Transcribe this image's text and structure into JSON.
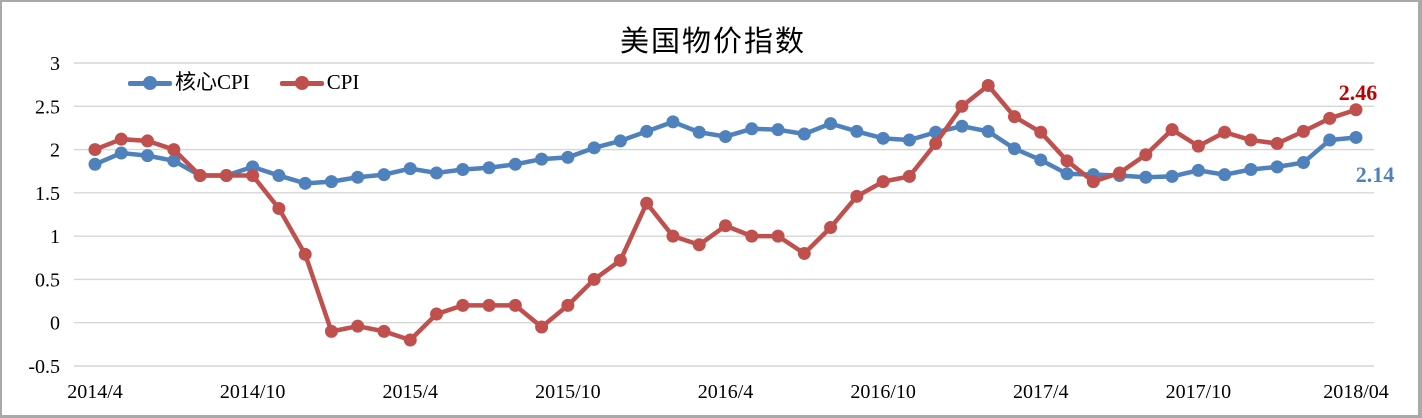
{
  "window": {
    "background": "#ffffff",
    "frame_color": "#a9a9a9"
  },
  "chart_data": {
    "type": "line",
    "title": "美国物价指数",
    "xlabel": "",
    "ylabel": "",
    "ylim": [
      -0.5,
      3
    ],
    "grid": "horizontal",
    "grid_color": "#d6d6d6",
    "legend_position": "top-left-inside",
    "y_tick_labels": [
      "3",
      "2.5",
      "2",
      "1.5",
      "1",
      "0.5",
      "0",
      "-0.5"
    ],
    "y_tick_values": [
      3,
      2.5,
      2,
      1.5,
      1,
      0.5,
      0,
      -0.5
    ],
    "x_tick_labels": [
      "2014/4",
      "2014/10",
      "2015/4",
      "2015/10",
      "2016/4",
      "2016/10",
      "2017/4",
      "2017/10",
      "2018/04"
    ],
    "x_tick_month_index": [
      0,
      6,
      12,
      18,
      24,
      30,
      36,
      42,
      48
    ],
    "x": [
      "2014/4",
      "2014/5",
      "2014/6",
      "2014/7",
      "2014/8",
      "2014/9",
      "2014/10",
      "2014/11",
      "2014/12",
      "2015/1",
      "2015/2",
      "2015/3",
      "2015/4",
      "2015/5",
      "2015/6",
      "2015/7",
      "2015/8",
      "2015/9",
      "2015/10",
      "2015/11",
      "2015/12",
      "2016/1",
      "2016/2",
      "2016/3",
      "2016/4",
      "2016/5",
      "2016/6",
      "2016/7",
      "2016/8",
      "2016/9",
      "2016/10",
      "2016/11",
      "2016/12",
      "2017/1",
      "2017/2",
      "2017/3",
      "2017/4",
      "2017/5",
      "2017/6",
      "2017/7",
      "2017/8",
      "2017/9",
      "2017/10",
      "2017/11",
      "2017/12",
      "2018/1",
      "2018/2",
      "2018/3",
      "2018/4"
    ],
    "series": [
      {
        "name": "核心CPI",
        "color": "#4F81BD",
        "values": [
          1.83,
          1.96,
          1.93,
          1.87,
          1.7,
          1.7,
          1.8,
          1.7,
          1.61,
          1.63,
          1.68,
          1.71,
          1.78,
          1.73,
          1.77,
          1.79,
          1.83,
          1.89,
          1.91,
          2.02,
          2.1,
          2.21,
          2.32,
          2.2,
          2.15,
          2.24,
          2.23,
          2.18,
          2.3,
          2.21,
          2.13,
          2.11,
          2.2,
          2.27,
          2.21,
          2.01,
          1.88,
          1.72,
          1.71,
          1.7,
          1.68,
          1.69,
          1.76,
          1.71,
          1.77,
          1.8,
          1.85,
          2.11,
          2.14
        ]
      },
      {
        "name": "CPI",
        "color": "#C0504D",
        "values": [
          2.0,
          2.12,
          2.1,
          2.0,
          1.7,
          1.7,
          1.7,
          1.32,
          0.79,
          -0.1,
          -0.04,
          -0.1,
          -0.2,
          0.1,
          0.2,
          0.2,
          0.2,
          -0.05,
          0.2,
          0.5,
          0.72,
          1.38,
          1.0,
          0.9,
          1.12,
          1.0,
          1.0,
          0.8,
          1.1,
          1.46,
          1.63,
          1.69,
          2.07,
          2.5,
          2.74,
          2.38,
          2.2,
          1.87,
          1.63,
          1.73,
          1.94,
          2.23,
          2.04,
          2.2,
          2.11,
          2.07,
          2.21,
          2.36,
          2.46
        ]
      }
    ],
    "annotations": [
      {
        "text": "2.46",
        "series": "CPI",
        "color": "#C00000"
      },
      {
        "text": "2.14",
        "series": "核心CPI",
        "color": "#4F81BD"
      }
    ]
  }
}
